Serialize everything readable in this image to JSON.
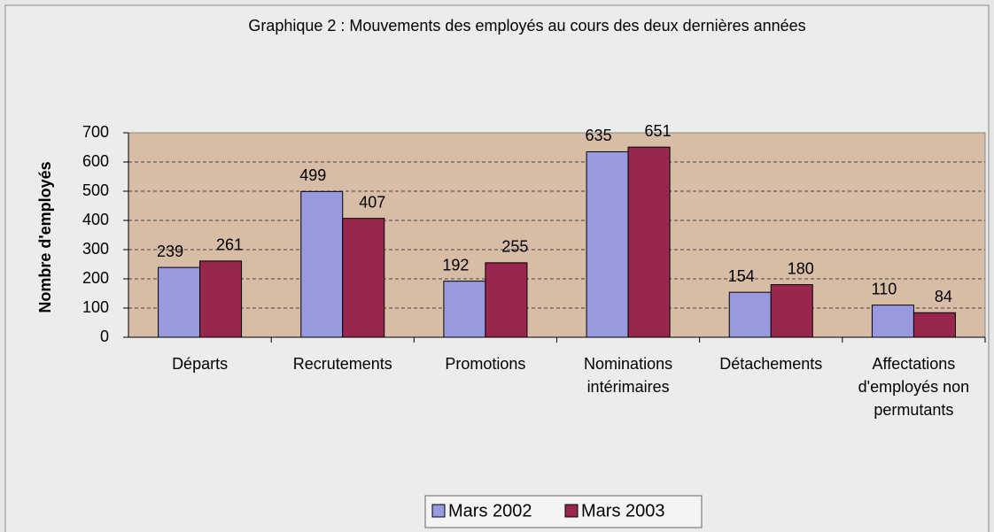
{
  "chart_data": {
    "type": "bar",
    "title": "Graphique 2 : Mouvements des employés au cours des deux dernières années",
    "y_label": "Nombre d'employés",
    "categories": [
      "Départs",
      "Recrutements",
      "Promotions",
      "Nominations intérimaires",
      "Détachements",
      "Affectations d'employés non permutants"
    ],
    "series": [
      {
        "name": "Mars 2002",
        "color": "#9999e0",
        "values": [
          239,
          499,
          192,
          635,
          154,
          110
        ]
      },
      {
        "name": "Mars 2003",
        "color": "#99264f",
        "values": [
          261,
          407,
          255,
          651,
          180,
          84
        ]
      }
    ],
    "ylim": [
      0,
      700
    ],
    "yticks": [
      0,
      100,
      200,
      300,
      400,
      500,
      600,
      700
    ],
    "grid": true
  }
}
